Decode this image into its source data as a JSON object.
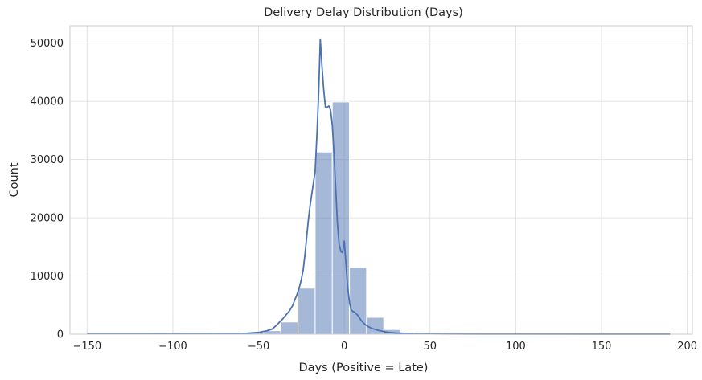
{
  "chart_data": {
    "type": "bar",
    "title": "Delivery Delay Distribution (Days)",
    "xlabel": "Days (Positive = Late)",
    "ylabel": "Count",
    "xlim": [
      -160,
      203
    ],
    "ylim": [
      0,
      53000
    ],
    "xticks": [
      -150,
      -100,
      -50,
      0,
      50,
      100,
      150,
      200
    ],
    "xtick_labels": [
      "−150",
      "−100",
      "−50",
      "0",
      "50",
      "100",
      "150",
      "200"
    ],
    "yticks": [
      0,
      10000,
      20000,
      30000,
      40000,
      50000
    ],
    "ytick_labels": [
      "0",
      "10000",
      "20000",
      "30000",
      "40000",
      "50000"
    ],
    "grid": true,
    "bar_color": "#4c72b0",
    "bar_opacity": 0.5,
    "kde_color": "#4c72b0",
    "bins": [
      {
        "x0": -147,
        "x1": -137,
        "count": 80
      },
      {
        "x0": -137,
        "x1": -127,
        "count": 50
      },
      {
        "x0": -127,
        "x1": -117,
        "count": 40
      },
      {
        "x0": -117,
        "x1": -107,
        "count": 40
      },
      {
        "x0": -107,
        "x1": -97,
        "count": 40
      },
      {
        "x0": -97,
        "x1": -87,
        "count": 40
      },
      {
        "x0": -87,
        "x1": -77,
        "count": 50
      },
      {
        "x0": -77,
        "x1": -67,
        "count": 60
      },
      {
        "x0": -67,
        "x1": -57,
        "count": 90
      },
      {
        "x0": -57,
        "x1": -47,
        "count": 250
      },
      {
        "x0": -47,
        "x1": -37,
        "count": 600
      },
      {
        "x0": -37,
        "x1": -27,
        "count": 2100
      },
      {
        "x0": -27,
        "x1": -17,
        "count": 7900
      },
      {
        "x0": -17,
        "x1": -7,
        "count": 31300
      },
      {
        "x0": -7,
        "x1": 3,
        "count": 39900
      },
      {
        "x0": 3,
        "x1": 13,
        "count": 11500
      },
      {
        "x0": 13,
        "x1": 23,
        "count": 2900
      },
      {
        "x0": 23,
        "x1": 33,
        "count": 800
      },
      {
        "x0": 33,
        "x1": 43,
        "count": 250
      },
      {
        "x0": 43,
        "x1": 53,
        "count": 100
      },
      {
        "x0": 53,
        "x1": 63,
        "count": 60
      },
      {
        "x0": 63,
        "x1": 73,
        "count": 40
      },
      {
        "x0": 73,
        "x1": 83,
        "count": 30
      },
      {
        "x0": 83,
        "x1": 93,
        "count": 30
      },
      {
        "x0": 93,
        "x1": 103,
        "count": 30
      },
      {
        "x0": 103,
        "x1": 113,
        "count": 20
      },
      {
        "x0": 113,
        "x1": 123,
        "count": 20
      },
      {
        "x0": 123,
        "x1": 133,
        "count": 20
      },
      {
        "x0": 133,
        "x1": 143,
        "count": 20
      },
      {
        "x0": 143,
        "x1": 153,
        "count": 20
      },
      {
        "x0": 153,
        "x1": 163,
        "count": 20
      },
      {
        "x0": 163,
        "x1": 173,
        "count": 20
      },
      {
        "x0": 173,
        "x1": 183,
        "count": 20
      },
      {
        "x0": 183,
        "x1": 193,
        "count": 20
      }
    ],
    "kde": {
      "x": [
        -150,
        -120,
        -90,
        -60,
        -50,
        -45,
        -42,
        -40,
        -38,
        -36,
        -34,
        -32,
        -30,
        -29,
        -28,
        -27,
        -26,
        -25,
        -24,
        -23,
        -22,
        -21,
        -20,
        -19,
        -18,
        -17,
        -16,
        -15,
        -14,
        -13,
        -12,
        -11,
        -10,
        -9,
        -8,
        -7,
        -6,
        -5,
        -4,
        -3,
        -2,
        -1,
        0,
        1,
        2,
        3,
        4,
        5,
        6,
        8,
        10,
        12,
        14,
        16,
        20,
        25,
        30,
        40,
        50,
        60,
        80,
        100,
        150,
        190
      ],
      "y": [
        50,
        50,
        60,
        100,
        300,
        600,
        900,
        1400,
        2000,
        2600,
        3300,
        4000,
        5000,
        5800,
        6500,
        7300,
        8300,
        9500,
        11000,
        13500,
        16500,
        19500,
        22000,
        24000,
        26000,
        28000,
        34000,
        41000,
        50700,
        46000,
        42000,
        39000,
        39000,
        39200,
        38500,
        36000,
        31000,
        25000,
        19000,
        15500,
        14200,
        14000,
        16000,
        12000,
        8000,
        5500,
        4200,
        3900,
        3800,
        3200,
        2300,
        1700,
        1300,
        1000,
        650,
        350,
        200,
        90,
        50,
        30,
        20,
        15,
        10,
        10
      ]
    }
  }
}
